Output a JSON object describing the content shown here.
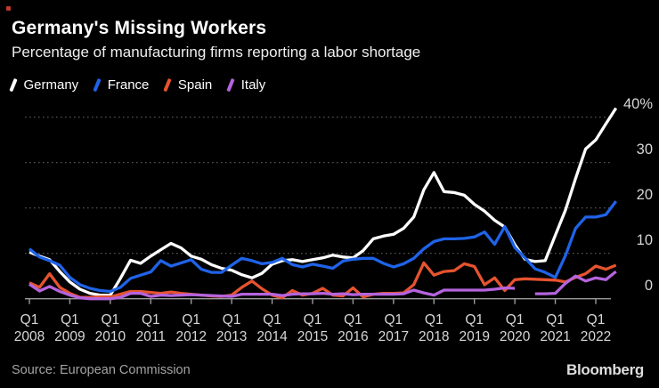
{
  "header": {
    "title": "Germany's Missing Workers",
    "subtitle": "Percentage of manufacturing firms reporting a labor shortage"
  },
  "legend": [
    {
      "label": "Germany",
      "color": "#ffffff"
    },
    {
      "label": "France",
      "color": "#1f63e8"
    },
    {
      "label": "Spain",
      "color": "#e5532f"
    },
    {
      "label": "Italy",
      "color": "#b564dd"
    }
  ],
  "footer": {
    "source": "Source: European Commission",
    "brand": "Bloomberg"
  },
  "colors": {
    "background": "#000000",
    "grid": "#5f5f5f",
    "axis": "#9b9b9b",
    "tick_label": "#d6d6d6"
  },
  "chart_data": {
    "type": "line",
    "title": "Germany's Missing Workers",
    "subtitle": "Percentage of manufacturing firms reporting a labor shortage",
    "x_unit": "quarter",
    "x_start": "Q1 2008",
    "x_end": "Q3 2022",
    "ylim": [
      0,
      43
    ],
    "grid": "horizontal-dotted",
    "legend_position": "top-left",
    "y_axis_side": "right",
    "y_ticks": [
      {
        "value": 40,
        "label": "40%"
      },
      {
        "value": 30,
        "label": "30"
      },
      {
        "value": 20,
        "label": "20"
      },
      {
        "value": 10,
        "label": "10"
      },
      {
        "value": 0,
        "label": "0"
      }
    ],
    "x_ticks": [
      {
        "q": "Q1",
        "year": "2008"
      },
      {
        "q": "Q1",
        "year": "2009"
      },
      {
        "q": "Q1",
        "year": "2010"
      },
      {
        "q": "Q1",
        "year": "2011"
      },
      {
        "q": "Q1",
        "year": "2012"
      },
      {
        "q": "Q1",
        "year": "2013"
      },
      {
        "q": "Q1",
        "year": "2014"
      },
      {
        "q": "Q1",
        "year": "2015"
      },
      {
        "q": "Q1",
        "year": "2016"
      },
      {
        "q": "Q1",
        "year": "2017"
      },
      {
        "q": "Q1",
        "year": "2018"
      },
      {
        "q": "Q1",
        "year": "2019"
      },
      {
        "q": "Q1",
        "year": "2020"
      },
      {
        "q": "Q1",
        "year": "2021"
      },
      {
        "q": "Q1",
        "year": "2022"
      }
    ],
    "series": [
      {
        "name": "Germany",
        "color": "#ffffff",
        "values": [
          10.3,
          9.4,
          8.6,
          6.0,
          3.7,
          2.1,
          1.2,
          0.8,
          0.8,
          4.5,
          8.5,
          7.8,
          9.4,
          10.8,
          12.2,
          11.2,
          9.4,
          8.7,
          7.5,
          6.7,
          6.3,
          5.3,
          4.6,
          5.6,
          7.6,
          8.4,
          8.6,
          8.2,
          8.6,
          9.0,
          9.6,
          9.2,
          9.0,
          10.6,
          13.2,
          13.8,
          14.2,
          15.5,
          18.0,
          24.0,
          27.8,
          23.6,
          23.4,
          22.8,
          20.8,
          19.3,
          17.3,
          15.8,
          11.9,
          8.7,
          8.2,
          8.4,
          14.0,
          19.5,
          26.5,
          33.0,
          35.0,
          38.5,
          42.0
        ]
      },
      {
        "name": "France",
        "color": "#1f63e8",
        "values": [
          11.0,
          9.2,
          8.4,
          7.4,
          4.7,
          3.1,
          2.3,
          1.8,
          1.6,
          2.5,
          4.5,
          5.2,
          5.9,
          8.4,
          7.2,
          7.9,
          8.6,
          6.5,
          5.8,
          5.8,
          7.4,
          8.9,
          8.4,
          7.7,
          8.0,
          8.9,
          7.5,
          7.0,
          7.6,
          7.2,
          6.7,
          8.3,
          8.7,
          8.9,
          8.9,
          7.8,
          7.0,
          7.7,
          8.9,
          11.0,
          12.6,
          13.2,
          13.2,
          13.3,
          13.6,
          14.7,
          12.0,
          15.9,
          11.3,
          9.0,
          6.6,
          5.8,
          4.7,
          9.5,
          15.5,
          18.0,
          18.0,
          18.5,
          21.5
        ]
      },
      {
        "name": "Spain",
        "color": "#e5532f",
        "values": [
          3.5,
          2.5,
          5.5,
          2.5,
          1.2,
          0.3,
          0.3,
          0.4,
          0.4,
          1.0,
          1.6,
          1.6,
          1.4,
          1.2,
          1.5,
          1.2,
          1.0,
          0.8,
          0.6,
          0.5,
          0.8,
          2.5,
          3.9,
          2.2,
          0.8,
          0.2,
          1.8,
          0.8,
          1.2,
          2.3,
          0.8,
          0.6,
          2.4,
          0.4,
          1.0,
          1.2,
          1.2,
          1.3,
          3.1,
          7.9,
          5.2,
          6.0,
          6.2,
          7.7,
          7.1,
          3.1,
          4.6,
          1.8,
          4.2,
          4.4,
          4.3,
          4.2,
          4.1,
          3.7,
          4.7,
          5.5,
          7.2,
          6.5,
          7.4
        ]
      },
      {
        "name": "Italy",
        "color": "#b564dd",
        "values": [
          3.2,
          1.7,
          2.7,
          1.6,
          0.8,
          0.2,
          0.0,
          0.0,
          0.0,
          0.3,
          1.2,
          1.2,
          0.5,
          0.8,
          0.7,
          0.8,
          0.9,
          0.8,
          0.7,
          0.6,
          0.5,
          1.0,
          1.0,
          1.0,
          1.0,
          0.7,
          1.0,
          1.1,
          1.1,
          1.2,
          1.0,
          1.1,
          0.9,
          1.0,
          1.0,
          1.0,
          1.0,
          1.1,
          1.9,
          1.3,
          0.8,
          1.9,
          1.9,
          1.9,
          1.9,
          1.9,
          2.1,
          2.4,
          2.3,
          null,
          1.1,
          1.1,
          1.2,
          3.4,
          5.0,
          3.9,
          4.6,
          4.2,
          6.0
        ]
      }
    ]
  }
}
